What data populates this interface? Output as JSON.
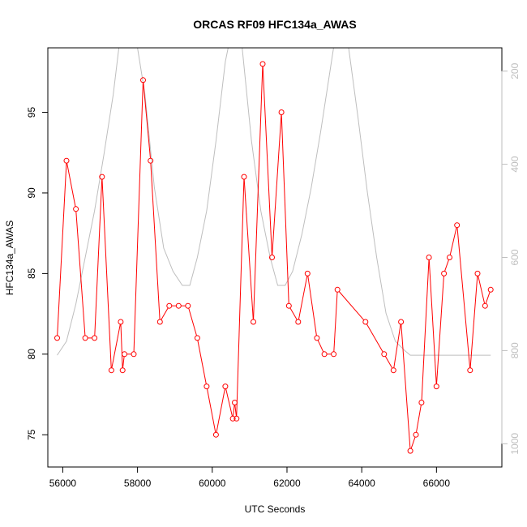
{
  "chart_data": {
    "type": "line",
    "title": "ORCAS RF09 HFC134a_AWAS",
    "xlabel": "UTC Seconds",
    "ylabel": "HFC134a_AWAS",
    "xlim": [
      55600,
      67750
    ],
    "ylim": [
      73,
      99
    ],
    "x_ticks": [
      56000,
      58000,
      60000,
      62000,
      64000,
      66000
    ],
    "x_tick_labels": [
      "56000",
      "58000",
      "60000",
      "62000",
      "64000",
      "66000"
    ],
    "y_ticks": [
      75,
      80,
      85,
      90,
      95
    ],
    "y_tick_labels": [
      "75",
      "80",
      "85",
      "90",
      "95"
    ],
    "y2_reversed": true,
    "y2lim": [
      1050,
      150
    ],
    "y2_ticks": [
      200,
      400,
      600,
      800,
      1000
    ],
    "y2_tick_labels": [
      "200",
      "400",
      "600",
      "800",
      "1000"
    ],
    "grid": false,
    "colors": {
      "series": "#ff0000",
      "secondary": "#bebebe"
    },
    "series": [
      {
        "axis": "left",
        "color": "#ff0000",
        "x": [
          55850,
          56100,
          56350,
          56600,
          56850,
          57050,
          57300,
          57550,
          57600,
          57650,
          57900,
          58150,
          58350,
          58600,
          58850,
          59100,
          59350,
          59600,
          59850,
          60100,
          60350,
          60550,
          60600,
          60650,
          60850,
          61100,
          61350,
          61600,
          61850,
          62050,
          62300,
          62550,
          62800,
          63000,
          63250,
          63350,
          64100,
          64600,
          64850,
          65050,
          65300,
          65450,
          65600,
          65800,
          66000,
          66200,
          66350,
          66550,
          66900,
          67100,
          67300,
          67450
        ],
        "y": [
          81,
          92,
          89,
          81,
          81,
          91,
          79,
          82,
          79,
          80,
          80,
          97,
          92,
          82,
          83,
          83,
          83,
          81,
          78,
          75,
          78,
          76,
          77,
          76,
          91,
          82,
          98,
          86,
          95,
          83,
          82,
          85,
          81,
          80,
          80,
          84,
          82,
          80,
          79,
          82,
          74,
          75,
          77,
          86,
          78,
          85,
          86,
          88,
          79,
          85,
          83,
          84
        ]
      },
      {
        "axis": "right",
        "color": "#bebebe",
        "x": [
          55850,
          56100,
          56350,
          56600,
          56850,
          57100,
          57350,
          57500,
          57750,
          58000,
          58200,
          58450,
          58700,
          58950,
          59200,
          59400,
          59600,
          59850,
          60100,
          60350,
          60600,
          60800,
          61050,
          61300,
          61550,
          61750,
          61950,
          62150,
          62400,
          62650,
          62900,
          63150,
          63400,
          63650,
          63900,
          64150,
          64400,
          64650,
          64900,
          65150,
          65300,
          65600,
          65900,
          66200,
          66500,
          66800,
          67100,
          67450
        ],
        "y": [
          810,
          780,
          700,
          600,
          500,
          380,
          250,
          150,
          100,
          150,
          250,
          450,
          580,
          630,
          660,
          660,
          600,
          500,
          350,
          180,
          80,
          150,
          350,
          500,
          600,
          660,
          660,
          630,
          550,
          450,
          330,
          200,
          70,
          150,
          300,
          460,
          600,
          720,
          780,
          800,
          810,
          810,
          810,
          810,
          810,
          810,
          810,
          810
        ]
      }
    ]
  }
}
